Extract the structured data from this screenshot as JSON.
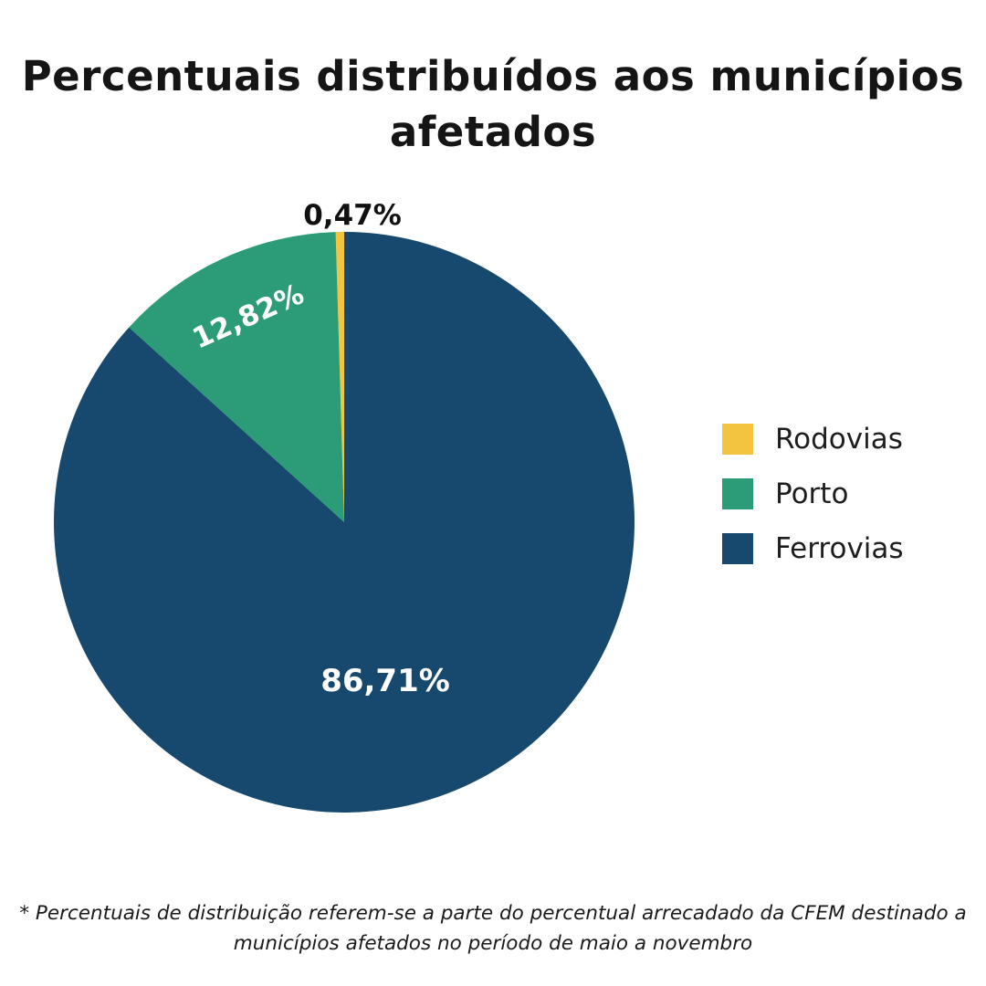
{
  "title_lines": [
    "Percentuais distribuídos aos municípios",
    "afetados"
  ],
  "chart_data": {
    "type": "pie",
    "title": "Percentuais distribuídos aos municípios afetados",
    "unit": "%",
    "start_angle_deg": -90,
    "direction": "counterclockwise",
    "legend_position": "right",
    "slices": [
      {
        "name": "Rodovias",
        "value": 0.47,
        "label": "0,47%",
        "color": "#F3C440"
      },
      {
        "name": "Porto",
        "value": 12.82,
        "label": "12,82%",
        "color": "#2B9C77"
      },
      {
        "name": "Ferrovias",
        "value": 86.71,
        "label": "86,71%",
        "color": "#17486D"
      }
    ]
  },
  "footnote_lines": [
    "* Percentuais de distribuição referem-se a parte do percentual arrecadado da CFEM destinado a",
    "municípios afetados no período de maio a novembro"
  ]
}
